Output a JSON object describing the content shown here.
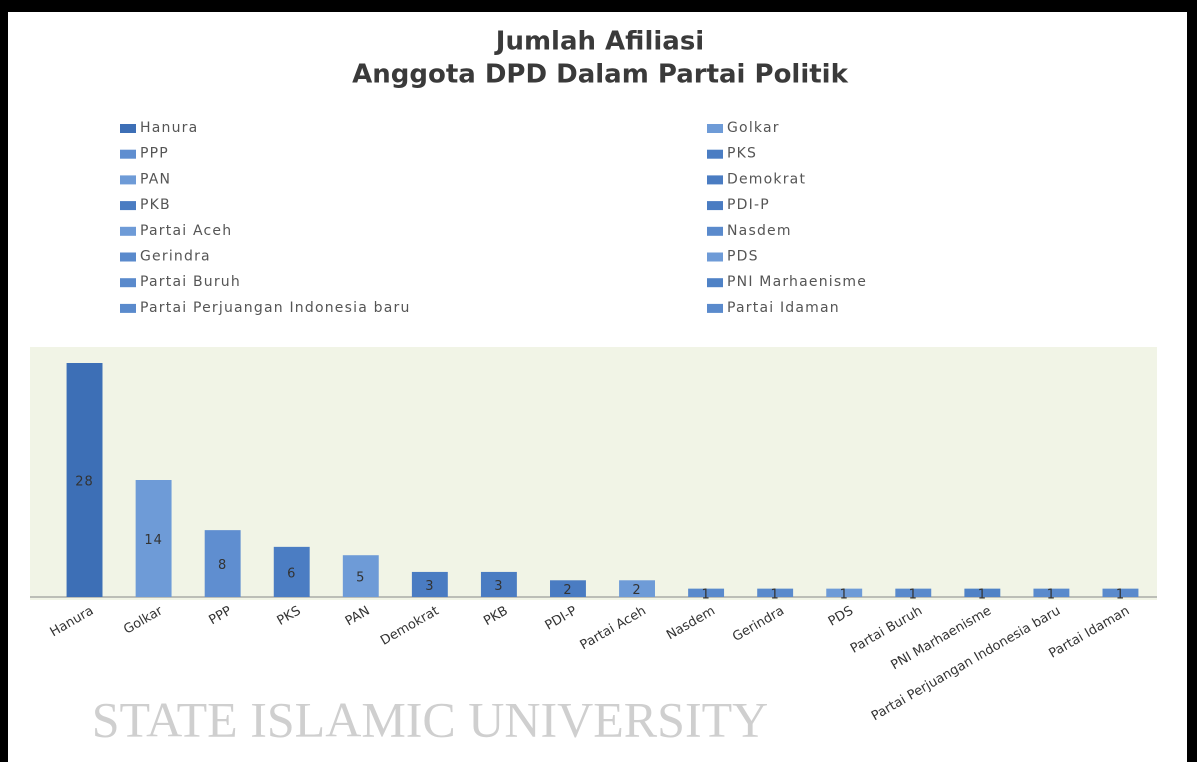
{
  "chart_data": {
    "type": "bar",
    "title": "Jumlah Afiliasi",
    "subtitle": "Anggota DPD Dalam Partai Politik",
    "categories": [
      "Hanura",
      "Golkar",
      "PPP",
      "PKS",
      "PAN",
      "Demokrat",
      "PKB",
      "PDI-P",
      "Partai Aceh",
      "Nasdem",
      "Gerindra",
      "PDS",
      "Partai Buruh",
      "PNI Marhaenisme",
      "Partai Perjuangan Indonesia baru",
      "Partai Idaman"
    ],
    "values": [
      28,
      14,
      8,
      6,
      5,
      3,
      3,
      2,
      2,
      1,
      1,
      1,
      1,
      1,
      1,
      1
    ],
    "colors": [
      "#3d6fb6",
      "#6e9bd7",
      "#5f8ed0",
      "#4b7dc3",
      "#6e9bd7",
      "#4a7cc2",
      "#4a7cc2",
      "#4a7cc2",
      "#6e9bd7",
      "#5a8acc",
      "#5a8acc",
      "#6e9bd7",
      "#5a8acc",
      "#4f82c6",
      "#5a8acc",
      "#5a8acc"
    ],
    "ylim": [
      0,
      28
    ],
    "legend": "top",
    "watermark": "STATE ISLAMIC UNIVERSITY"
  }
}
